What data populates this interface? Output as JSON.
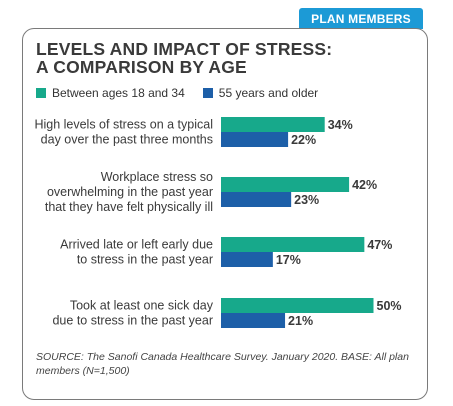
{
  "tab_label": "PLAN MEMBERS",
  "colors": {
    "series1": "#17a98b",
    "series2": "#1d5fa8",
    "tab": "#1c9ad6"
  },
  "chart_data": {
    "type": "bar",
    "orientation": "horizontal",
    "title_lines": [
      "LEVELS AND IMPACT OF STRESS:",
      "A COMPARISON BY AGE"
    ],
    "categories": [
      [
        "High levels of stress on a typical",
        "day over the past three months"
      ],
      [
        "Workplace stress so",
        "overwhelming in the past year",
        "that they have felt physically ill"
      ],
      [
        "Arrived late or left early due",
        "to stress in the past year"
      ],
      [
        "Took at least one sick day",
        "due to stress in the past year"
      ]
    ],
    "series": [
      {
        "name": "Between ages 18 and 34",
        "values": [
          34,
          42,
          47,
          50
        ],
        "labels": [
          "34%",
          "42%",
          "47%",
          "50%"
        ]
      },
      {
        "name": "55 years and older",
        "values": [
          22,
          23,
          17,
          21
        ],
        "labels": [
          "22%",
          "23%",
          "17%",
          "21%"
        ]
      }
    ],
    "unit": "%",
    "legend_position": "top-left"
  },
  "source": "SOURCE: The Sanofi Canada Healthcare Survey. January 2020. BASE: All plan members (N=1,500)"
}
